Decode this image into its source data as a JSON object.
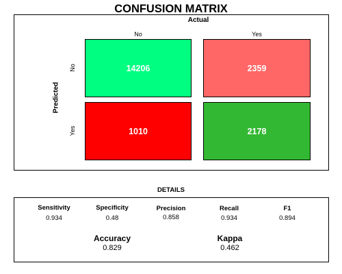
{
  "chart_data": {
    "type": "heatmap",
    "title": "CONFUSION MATRIX",
    "xlabel": "Actual",
    "ylabel": "Predicted",
    "x_categories": [
      "No",
      "Yes"
    ],
    "y_categories": [
      "No",
      "Yes"
    ],
    "cells": [
      {
        "predicted": "No",
        "actual": "No",
        "value": 14206,
        "color": "#00ff80"
      },
      {
        "predicted": "No",
        "actual": "Yes",
        "value": 2359,
        "color": "#ff6666"
      },
      {
        "predicted": "Yes",
        "actual": "No",
        "value": 1010,
        "color": "#ff0000"
      },
      {
        "predicted": "Yes",
        "actual": "Yes",
        "value": 2178,
        "color": "#33b833"
      }
    ]
  },
  "details": {
    "heading": "DETAILS",
    "metrics": [
      {
        "label": "Sensitivity",
        "value": "0.934"
      },
      {
        "label": "Specificity",
        "value": "0.48"
      },
      {
        "label": "Precision",
        "value": "0.858"
      },
      {
        "label": "Recall",
        "value": "0.934"
      },
      {
        "label": "F1",
        "value": "0.894"
      }
    ],
    "summary": [
      {
        "label": "Accuracy",
        "value": "0.829"
      },
      {
        "label": "Kappa",
        "value": "0.462"
      }
    ]
  }
}
